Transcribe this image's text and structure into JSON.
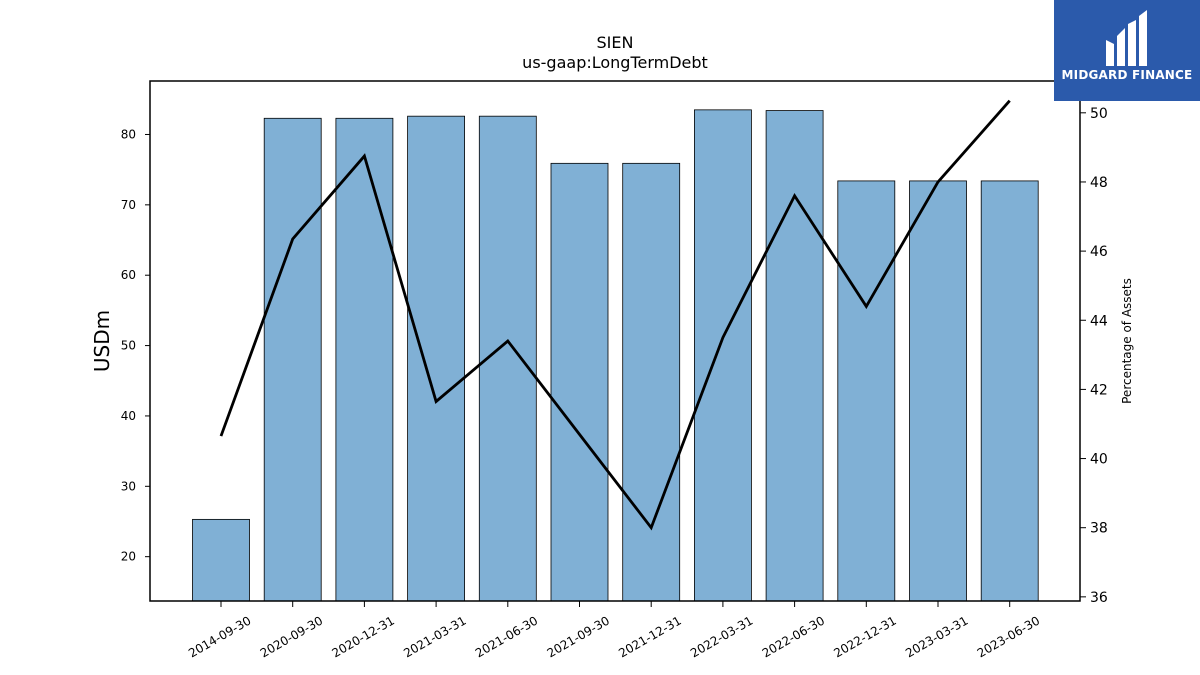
{
  "brand": {
    "name": "MIDGARD FINANCE",
    "color": "#2b5aab"
  },
  "chart_data": {
    "type": "bar",
    "title": "SIEN",
    "subtitle": "us-gaap:LongTermDebt",
    "ylabel": "USDm",
    "y2label": "Percentage of Assets",
    "categories": [
      "2014-09-30",
      "2020-09-30",
      "2020-12-31",
      "2021-03-31",
      "2021-06-30",
      "2021-09-30",
      "2021-12-31",
      "2022-03-31",
      "2022-06-30",
      "2022-12-31",
      "2023-03-31",
      "2023-06-30"
    ],
    "series": [
      {
        "type": "bar",
        "values": [
          25.3,
          82.3,
          82.3,
          82.6,
          82.6,
          75.9,
          75.9,
          83.5,
          83.4,
          73.4,
          73.4,
          73.4
        ],
        "axis": "left"
      },
      {
        "type": "line",
        "values": [
          40.65,
          46.35,
          48.75,
          41.65,
          43.4,
          40.7,
          38.0,
          43.5,
          47.6,
          44.4,
          48.0,
          50.35
        ],
        "axis": "right"
      }
    ],
    "ylim": [
      13.7,
      87.6
    ],
    "y2lim": [
      35.88,
      50.92
    ],
    "yticks": [
      20,
      30,
      40,
      50,
      60,
      70,
      80
    ],
    "y2ticks": [
      36,
      38,
      40,
      42,
      44,
      46,
      48,
      50
    ],
    "colors": {
      "bar": "#80b0d5",
      "bar_edge": "#000000",
      "line": "#000000"
    },
    "grid": false
  }
}
